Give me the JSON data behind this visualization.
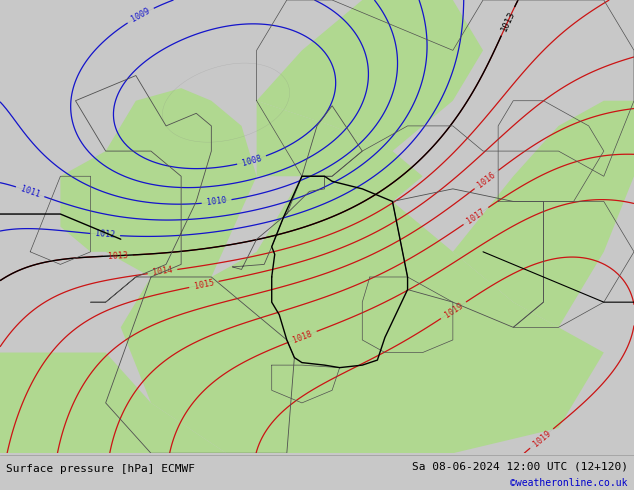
{
  "title_left": "Surface pressure [hPa] ECMWF",
  "title_right": "Sa 08-06-2024 12:00 UTC (12+120)",
  "watermark": "©weatheronline.co.uk",
  "bg_land_green": "#b0d890",
  "bg_land_gray": "#c8c8c8",
  "bg_sea_gray": "#c0c8d0",
  "contour_blue": "#1414cc",
  "contour_red": "#cc1414",
  "contour_black": "#000000",
  "contour_gray": "#808080",
  "bottom_bar_bg": "#e0e0e0",
  "font_black": "#000000",
  "font_blue": "#0000cc",
  "figsize": [
    6.34,
    4.9
  ],
  "dpi": 100,
  "map_extent": [
    -12,
    30,
    44,
    62
  ]
}
